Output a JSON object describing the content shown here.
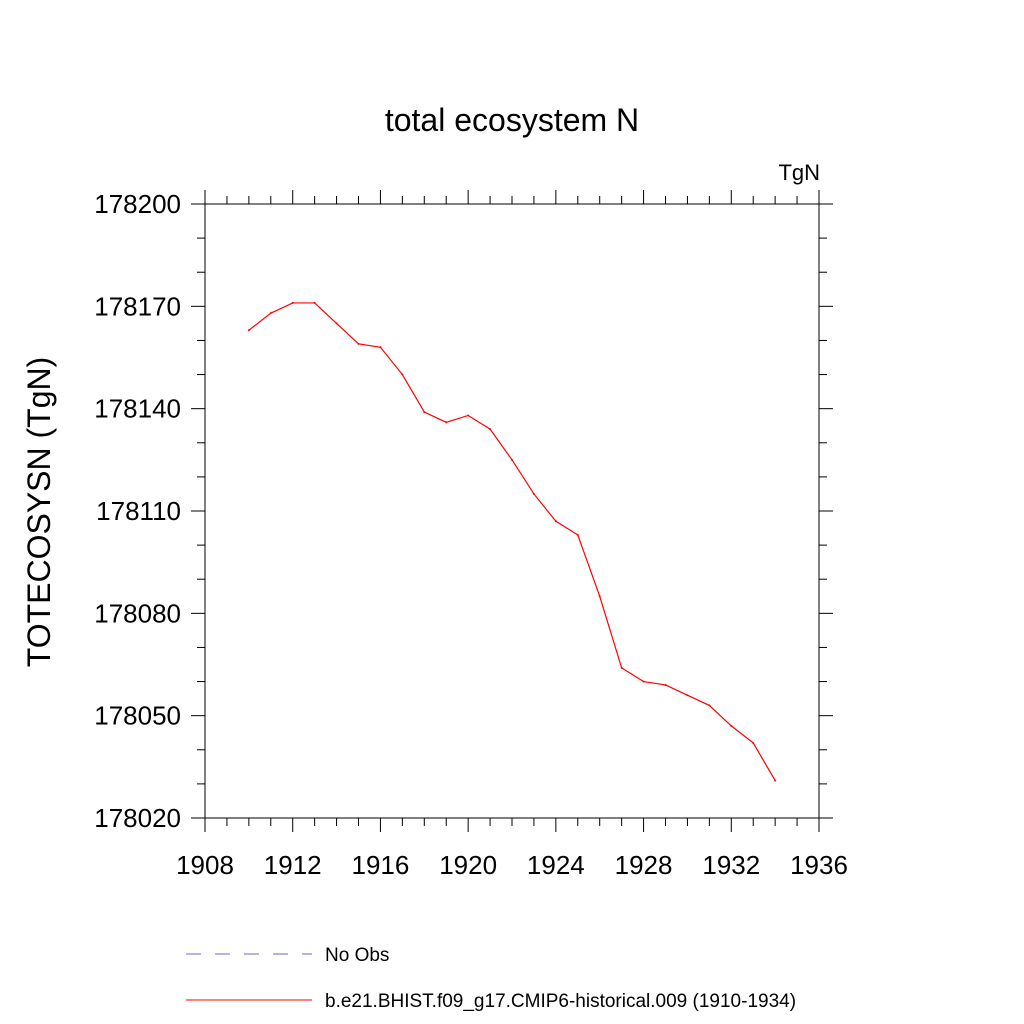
{
  "chart_data": {
    "type": "line",
    "title": "total ecosystem N",
    "units_label": "TgN",
    "xlabel": "",
    "ylabel": "TOTECOSYSN  (TgN)",
    "xlim": [
      1908,
      1936
    ],
    "ylim": [
      178020,
      178200
    ],
    "xticks": [
      1908,
      1912,
      1916,
      1920,
      1924,
      1928,
      1932,
      1936
    ],
    "yticks": [
      178020,
      178050,
      178080,
      178110,
      178140,
      178170,
      178200
    ],
    "grid": false,
    "legend_position": "bottom",
    "series": [
      {
        "name": "No Obs",
        "color": "#6a6acd",
        "dash": "dashed",
        "x": [],
        "y": []
      },
      {
        "name": "b.e21.BHIST.f09_g17.CMIP6-historical.009 (1910-1934)",
        "color": "#ff0000",
        "dash": "solid",
        "x": [
          1910,
          1911,
          1912,
          1913,
          1914,
          1915,
          1916,
          1917,
          1918,
          1919,
          1920,
          1921,
          1922,
          1923,
          1924,
          1925,
          1926,
          1927,
          1928,
          1929,
          1930,
          1931,
          1932,
          1933,
          1934
        ],
        "y": [
          178163,
          178168,
          178171,
          178171,
          178165,
          178159,
          178158,
          178150,
          178139,
          178136,
          178138,
          178134,
          178125,
          178115,
          178107,
          178103,
          178085,
          178064,
          178060,
          178059,
          178056,
          178053,
          178047,
          178042,
          178031
        ]
      }
    ]
  }
}
